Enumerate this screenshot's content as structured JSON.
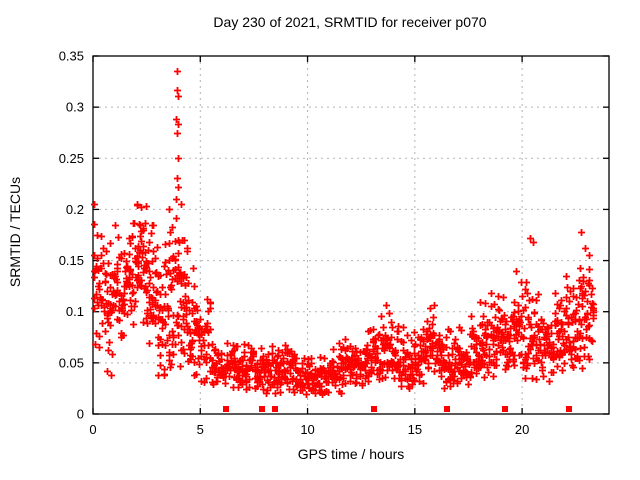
{
  "chart_data": {
    "type": "scatter",
    "title": "Day 230 of 2021, SRMTID for receiver p070",
    "xlabel": "GPS time / hours",
    "ylabel": "SRMTID / TECUs",
    "xlim": [
      0,
      24.05
    ],
    "ylim": [
      0,
      0.35
    ],
    "x_ticks": [
      0,
      5,
      10,
      15,
      20
    ],
    "y_ticks": [
      0,
      0.05,
      0.1,
      0.15,
      0.2,
      0.25,
      0.3,
      0.35
    ],
    "grid": {
      "show": true,
      "color": "#b3b3b3",
      "dash": "2,4"
    },
    "axis_color": "#000000",
    "marker": {
      "shape": "plus",
      "color": "#ff0000",
      "size": 7,
      "stroke_width": 1.8
    },
    "zero_marker": {
      "shape": "filled-square",
      "color": "#ff0000",
      "size": 6
    },
    "zero_marker_hours": [
      6.2,
      7.9,
      8.5,
      13.1,
      16.5,
      19.2,
      22.2
    ],
    "series_name": "SRMTID",
    "rng_seed": 42,
    "note": "dense scatter approximated by per-half-hour envelope bins: [hour_start, hour_end, n_points, y_center, y_spread, y_min, y_max]",
    "density_bins": [
      [
        0.0,
        0.5,
        34,
        0.125,
        0.04,
        0.055,
        0.205
      ],
      [
        0.5,
        1.0,
        34,
        0.115,
        0.03,
        0.058,
        0.18
      ],
      [
        1.0,
        1.5,
        38,
        0.125,
        0.03,
        0.07,
        0.185
      ],
      [
        1.5,
        2.0,
        40,
        0.14,
        0.03,
        0.08,
        0.19
      ],
      [
        2.0,
        2.5,
        44,
        0.155,
        0.026,
        0.09,
        0.205
      ],
      [
        2.5,
        3.0,
        40,
        0.128,
        0.035,
        0.058,
        0.19
      ],
      [
        3.0,
        3.5,
        38,
        0.1,
        0.036,
        0.038,
        0.18
      ],
      [
        3.5,
        4.0,
        44,
        0.115,
        0.05,
        0.04,
        0.2
      ],
      [
        4.0,
        4.5,
        40,
        0.11,
        0.038,
        0.045,
        0.18
      ],
      [
        4.5,
        5.0,
        34,
        0.075,
        0.03,
        0.035,
        0.148
      ],
      [
        5.0,
        5.5,
        30,
        0.06,
        0.022,
        0.03,
        0.128
      ],
      [
        5.5,
        6.0,
        30,
        0.045,
        0.012,
        0.028,
        0.082
      ],
      [
        6.0,
        6.5,
        30,
        0.042,
        0.01,
        0.025,
        0.072
      ],
      [
        6.5,
        7.0,
        32,
        0.045,
        0.012,
        0.025,
        0.08
      ],
      [
        7.0,
        7.5,
        32,
        0.048,
        0.014,
        0.024,
        0.092
      ],
      [
        7.5,
        8.0,
        30,
        0.042,
        0.012,
        0.022,
        0.075
      ],
      [
        8.0,
        8.5,
        32,
        0.04,
        0.012,
        0.02,
        0.07
      ],
      [
        8.5,
        9.0,
        34,
        0.044,
        0.014,
        0.02,
        0.085
      ],
      [
        9.0,
        9.5,
        32,
        0.04,
        0.012,
        0.018,
        0.07
      ],
      [
        9.5,
        10.0,
        32,
        0.035,
        0.01,
        0.015,
        0.06
      ],
      [
        10.0,
        10.5,
        32,
        0.033,
        0.01,
        0.015,
        0.056
      ],
      [
        10.5,
        11.0,
        32,
        0.035,
        0.01,
        0.018,
        0.06
      ],
      [
        11.0,
        11.5,
        32,
        0.04,
        0.012,
        0.02,
        0.07
      ],
      [
        11.5,
        12.0,
        32,
        0.044,
        0.014,
        0.02,
        0.08
      ],
      [
        12.0,
        12.5,
        32,
        0.05,
        0.015,
        0.025,
        0.086
      ],
      [
        12.5,
        13.0,
        32,
        0.054,
        0.015,
        0.028,
        0.092
      ],
      [
        13.0,
        13.5,
        32,
        0.06,
        0.016,
        0.03,
        0.1
      ],
      [
        13.5,
        14.0,
        34,
        0.064,
        0.018,
        0.03,
        0.11
      ],
      [
        14.0,
        14.5,
        32,
        0.055,
        0.015,
        0.025,
        0.1
      ],
      [
        14.5,
        15.0,
        30,
        0.05,
        0.015,
        0.025,
        0.09
      ],
      [
        15.0,
        15.5,
        34,
        0.06,
        0.018,
        0.028,
        0.108
      ],
      [
        15.5,
        16.0,
        34,
        0.064,
        0.018,
        0.03,
        0.115
      ],
      [
        16.0,
        16.5,
        32,
        0.055,
        0.015,
        0.025,
        0.1
      ],
      [
        16.5,
        17.0,
        30,
        0.05,
        0.015,
        0.025,
        0.092
      ],
      [
        17.0,
        17.5,
        32,
        0.055,
        0.015,
        0.028,
        0.1
      ],
      [
        17.5,
        18.0,
        32,
        0.06,
        0.017,
        0.03,
        0.11
      ],
      [
        18.0,
        18.5,
        34,
        0.065,
        0.019,
        0.03,
        0.12
      ],
      [
        18.5,
        19.0,
        34,
        0.07,
        0.02,
        0.035,
        0.13
      ],
      [
        19.0,
        19.5,
        34,
        0.07,
        0.02,
        0.035,
        0.13
      ],
      [
        19.5,
        20.0,
        34,
        0.075,
        0.026,
        0.035,
        0.165
      ],
      [
        20.0,
        20.5,
        34,
        0.08,
        0.028,
        0.035,
        0.173
      ],
      [
        20.5,
        21.0,
        32,
        0.068,
        0.02,
        0.032,
        0.15
      ],
      [
        21.0,
        21.5,
        32,
        0.065,
        0.019,
        0.03,
        0.12
      ],
      [
        21.5,
        22.0,
        34,
        0.07,
        0.02,
        0.035,
        0.135
      ],
      [
        22.0,
        22.5,
        36,
        0.08,
        0.026,
        0.04,
        0.165
      ],
      [
        22.5,
        23.0,
        36,
        0.092,
        0.03,
        0.045,
        0.18
      ],
      [
        23.0,
        23.35,
        24,
        0.095,
        0.025,
        0.05,
        0.165
      ]
    ],
    "outlier_points": [
      [
        3.9,
        0.335
      ],
      [
        3.93,
        0.317
      ],
      [
        3.95,
        0.311
      ],
      [
        3.89,
        0.288
      ],
      [
        3.94,
        0.284
      ],
      [
        3.91,
        0.275
      ],
      [
        3.96,
        0.25
      ],
      [
        3.9,
        0.231
      ],
      [
        3.94,
        0.222
      ],
      [
        3.88,
        0.21
      ],
      [
        4.12,
        0.205
      ],
      [
        0.05,
        0.205
      ],
      [
        2.05,
        0.205
      ],
      [
        0.65,
        0.042
      ],
      [
        0.82,
        0.038
      ],
      [
        20.35,
        0.172
      ],
      [
        20.5,
        0.168
      ],
      [
        22.75,
        0.178
      ],
      [
        23.1,
        0.155
      ]
    ]
  }
}
